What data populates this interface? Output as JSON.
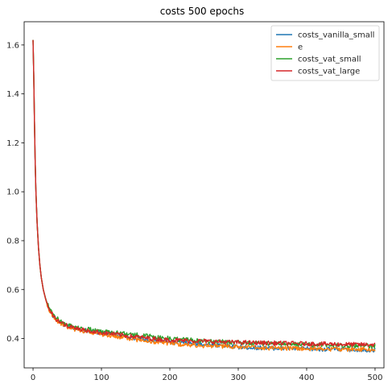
{
  "chart_data": {
    "type": "line",
    "title": "costs 500 epochs",
    "xlabel": "",
    "ylabel": "",
    "xlim": [
      -13,
      513
    ],
    "ylim": [
      0.28,
      1.695
    ],
    "x_ticks": [
      0,
      100,
      200,
      300,
      400,
      500
    ],
    "y_ticks": [
      0.4,
      0.6,
      0.8,
      1.0,
      1.2,
      1.4,
      1.6
    ],
    "x_tick_labels": [
      "0",
      "100",
      "200",
      "300",
      "400",
      "500"
    ],
    "y_tick_labels": [
      "0.4",
      "0.6",
      "0.8",
      "1.0",
      "1.2",
      "1.4",
      "1.6"
    ],
    "grid": false,
    "legend_position": "top-right",
    "x": [
      0,
      1,
      2,
      3,
      4,
      5,
      6,
      8,
      10,
      12,
      15,
      18,
      20,
      25,
      30,
      35,
      40,
      50,
      60,
      70,
      80,
      90,
      100,
      120,
      140,
      160,
      180,
      200,
      220,
      240,
      260,
      280,
      300,
      320,
      340,
      360,
      380,
      400,
      420,
      440,
      460,
      480,
      500
    ],
    "series": [
      {
        "name": "costs_vanilla_small",
        "color": "#1f77b4",
        "values": [
          1.62,
          1.48,
          1.3,
          1.14,
          1.02,
          0.94,
          0.87,
          0.77,
          0.7,
          0.65,
          0.6,
          0.565,
          0.545,
          0.51,
          0.49,
          0.475,
          0.465,
          0.45,
          0.44,
          0.435,
          0.432,
          0.428,
          0.422,
          0.415,
          0.405,
          0.398,
          0.392,
          0.385,
          0.382,
          0.378,
          0.375,
          0.372,
          0.365,
          0.363,
          0.362,
          0.36,
          0.359,
          0.358,
          0.357,
          0.356,
          0.355,
          0.354,
          0.353
        ]
      },
      {
        "name": "e",
        "color": "#ff7f0e",
        "values": [
          1.62,
          1.48,
          1.3,
          1.14,
          1.02,
          0.94,
          0.87,
          0.77,
          0.7,
          0.65,
          0.6,
          0.565,
          0.545,
          0.51,
          0.49,
          0.474,
          0.463,
          0.448,
          0.438,
          0.432,
          0.428,
          0.424,
          0.418,
          0.41,
          0.4,
          0.392,
          0.385,
          0.38,
          0.376,
          0.372,
          0.37,
          0.368,
          0.365,
          0.363,
          0.362,
          0.36,
          0.36,
          0.359,
          0.358,
          0.357,
          0.356,
          0.356,
          0.355
        ]
      },
      {
        "name": "costs_vat_small",
        "color": "#2ca02c",
        "values": [
          1.62,
          1.48,
          1.3,
          1.14,
          1.02,
          0.94,
          0.87,
          0.77,
          0.7,
          0.65,
          0.6,
          0.568,
          0.55,
          0.515,
          0.495,
          0.482,
          0.472,
          0.458,
          0.448,
          0.442,
          0.438,
          0.434,
          0.43,
          0.425,
          0.418,
          0.412,
          0.406,
          0.4,
          0.396,
          0.392,
          0.39,
          0.387,
          0.384,
          0.382,
          0.38,
          0.378,
          0.377,
          0.375,
          0.374,
          0.373,
          0.372,
          0.371,
          0.37
        ]
      },
      {
        "name": "costs_vat_large",
        "color": "#d62728",
        "values": [
          1.62,
          1.48,
          1.3,
          1.14,
          1.02,
          0.94,
          0.87,
          0.77,
          0.7,
          0.65,
          0.6,
          0.566,
          0.547,
          0.512,
          0.492,
          0.477,
          0.467,
          0.452,
          0.442,
          0.436,
          0.432,
          0.428,
          0.424,
          0.418,
          0.41,
          0.404,
          0.398,
          0.394,
          0.392,
          0.39,
          0.388,
          0.386,
          0.384,
          0.383,
          0.382,
          0.381,
          0.38,
          0.379,
          0.378,
          0.377,
          0.376,
          0.375,
          0.375
        ]
      }
    ]
  }
}
